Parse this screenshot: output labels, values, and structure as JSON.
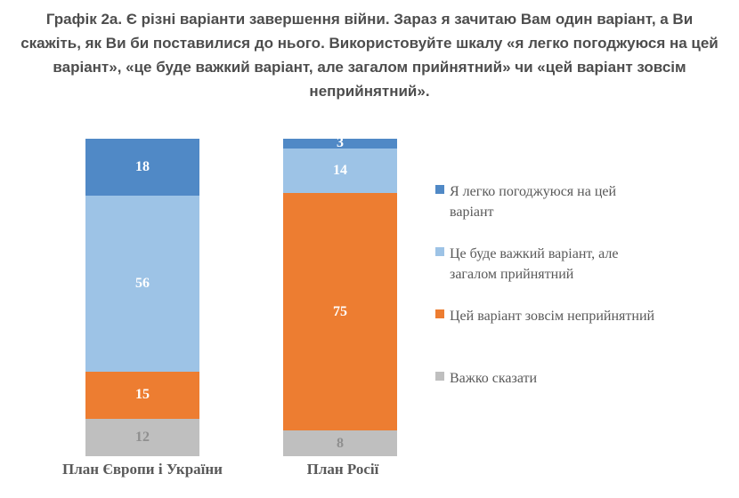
{
  "title": "Графік 2а. Є різні варіанти завершення війни. Зараз я зачитаю Вам один варіант, а Ви\nскажіть, як Ви би поставилися до нього. Використовуйте шкалу «я легко погоджуюся на цей\nваріант», «це буде важкий варіант, але загалом прийнятний» чи «цей варіант зовсім\nнеприйнятний».",
  "chart_data": {
    "type": "bar",
    "stacked": true,
    "percent_stacked": true,
    "orientation": "vertical",
    "grid": false,
    "axes_visible": false,
    "legend_position": "right",
    "categories": [
      "План Європи і України",
      "План Росії"
    ],
    "series": [
      {
        "name": "Я легко погоджуюся на цей варіант",
        "legend_label": "Я легко погоджуюся на цей\nваріант",
        "color": "#5089C6",
        "value_label_color": "#FFFFFF",
        "values": [
          18,
          3
        ]
      },
      {
        "name": "Це буде важкий варіант, але загалом прийнятний",
        "legend_label": "Це буде важкий варіант, але\nзагалом прийнятний",
        "color": "#9DC3E6",
        "value_label_color": "#FFFFFF",
        "values": [
          56,
          14
        ]
      },
      {
        "name": "Цей варіант зовсім неприйнятний",
        "legend_label": "Цей варіант зовсім неприйнятний",
        "color": "#ED7D31",
        "value_label_color": "#FFFFFF",
        "values": [
          15,
          75
        ]
      },
      {
        "name": "Важко сказати",
        "legend_label": "Важко сказати",
        "color": "#BFBFBF",
        "value_label_color": "#8F8F8F",
        "values": [
          12,
          8
        ]
      }
    ],
    "colors": {
      "title_text": "#4D4D4D",
      "category_label_text": "#595959",
      "legend_text": "#595959",
      "background": "#FFFFFF"
    }
  }
}
